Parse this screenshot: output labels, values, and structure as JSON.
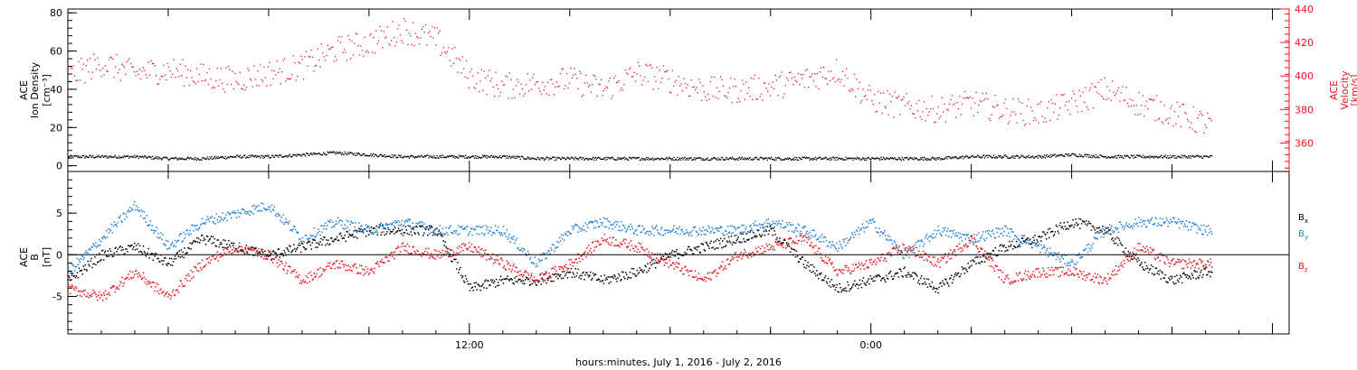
{
  "chart_data": [
    {
      "type": "scatter",
      "panel": "density-velocity",
      "ylabel_left": [
        "ACE",
        "Ion Density",
        "[cm⁻³]"
      ],
      "ylabel_right": [
        "ACE",
        "Velocity",
        "[km/s]"
      ],
      "y_left_ticks": [
        "0",
        "20",
        "40",
        "60",
        "80"
      ],
      "y_left_range": [
        -3,
        82
      ],
      "y_right_ticks": [
        "360",
        "380",
        "400",
        "420",
        "440"
      ],
      "y_right_range": [
        343,
        440
      ],
      "series": [
        {
          "name": "density",
          "color": "#000000",
          "axis": "left",
          "x_hours": [
            0,
            1,
            2,
            3,
            4,
            5,
            6,
            7,
            8,
            9,
            10,
            11,
            12,
            13,
            14,
            15,
            16,
            17,
            18,
            19,
            20,
            21,
            22,
            23,
            24,
            25,
            26,
            27,
            28,
            29,
            30,
            31,
            32,
            33,
            34
          ],
          "values": [
            5,
            5,
            5,
            4,
            4,
            5,
            5,
            6,
            7,
            6,
            5,
            5,
            5,
            5,
            4,
            4,
            4,
            4,
            4,
            4,
            4,
            4,
            4,
            4,
            4,
            4,
            4,
            5,
            5,
            5,
            6,
            5,
            5,
            5,
            5
          ]
        },
        {
          "name": "velocity",
          "color": "#e8141e",
          "axis": "right",
          "x_hours": [
            0,
            1,
            2,
            3,
            4,
            5,
            6,
            7,
            8,
            9,
            10,
            11,
            12,
            13,
            14,
            15,
            16,
            17,
            18,
            19,
            20,
            21,
            22,
            23,
            24,
            25,
            26,
            27,
            28,
            29,
            30,
            31,
            32,
            33,
            34
          ],
          "values": [
            400,
            408,
            402,
            404,
            400,
            398,
            402,
            406,
            416,
            420,
            428,
            422,
            400,
            394,
            396,
            398,
            392,
            402,
            398,
            392,
            392,
            394,
            398,
            404,
            386,
            382,
            380,
            384,
            380,
            378,
            384,
            392,
            384,
            378,
            372
          ]
        }
      ]
    },
    {
      "type": "scatter",
      "panel": "imf",
      "ylabel": [
        "ACE",
        "B",
        "[nT]"
      ],
      "y_ticks": [
        "-5",
        "0",
        "5"
      ],
      "y_range": [
        -9.5,
        10
      ],
      "series": [
        {
          "name": "Bx",
          "label": "B",
          "sub": "x",
          "color": "#000000",
          "x_hours": [
            0,
            1,
            2,
            3,
            4,
            5,
            6,
            7,
            8,
            9,
            10,
            11,
            12,
            13,
            14,
            15,
            16,
            17,
            18,
            19,
            20,
            21,
            22,
            23,
            24,
            25,
            26,
            27,
            28,
            29,
            30,
            31,
            32,
            33,
            34
          ],
          "values": [
            -3,
            0,
            1,
            -1,
            2,
            1,
            0,
            1,
            2,
            3,
            3,
            3,
            -4,
            -3,
            -3,
            -2,
            -3,
            -2,
            0,
            1,
            2,
            3,
            -1,
            -4,
            -3,
            -2,
            -4,
            -1,
            1,
            2,
            4,
            3,
            -1,
            -3,
            -2
          ]
        },
        {
          "name": "By",
          "label": "B",
          "sub": "y",
          "color": "#1f7fd6",
          "x_hours": [
            0,
            1,
            2,
            3,
            4,
            5,
            6,
            7,
            8,
            9,
            10,
            11,
            12,
            13,
            14,
            15,
            16,
            17,
            18,
            19,
            20,
            21,
            22,
            23,
            24,
            25,
            26,
            27,
            28,
            29,
            30,
            31,
            32,
            33,
            34
          ],
          "values": [
            -2,
            2,
            6,
            1,
            4,
            5,
            6,
            2,
            4,
            3,
            4,
            3,
            3,
            3,
            -1,
            3,
            4,
            3,
            3,
            3,
            3,
            4,
            3,
            1,
            4,
            0,
            3,
            2,
            3,
            1,
            -1,
            3,
            4,
            4,
            3
          ]
        },
        {
          "name": "Bz",
          "label": "B",
          "sub": "z",
          "color": "#e8141e",
          "x_hours": [
            0,
            1,
            2,
            3,
            4,
            5,
            6,
            7,
            8,
            9,
            10,
            11,
            12,
            13,
            14,
            15,
            16,
            17,
            18,
            19,
            20,
            21,
            22,
            23,
            24,
            25,
            26,
            27,
            28,
            29,
            30,
            31,
            32,
            33,
            34
          ],
          "values": [
            -4,
            -5,
            -2,
            -5,
            -1,
            1,
            0,
            -3,
            -1,
            -2,
            1,
            0,
            1,
            -1,
            -3,
            -1,
            2,
            1,
            -1,
            -3,
            0,
            1,
            2,
            -2,
            -1,
            1,
            -1,
            2,
            -3,
            -2,
            -2,
            -3,
            1,
            -1,
            -1
          ]
        }
      ]
    }
  ],
  "x_axis": {
    "start_hour": 0,
    "end_hour": 36.5,
    "tick_labels": [
      {
        "hour": 12,
        "label": "12:00"
      },
      {
        "hour": 24,
        "label": "0:00"
      }
    ],
    "xlabel": "hours:minutes, July  1, 2016 - July  2, 2016"
  },
  "colors": {
    "black": "#000000",
    "red": "#e8141e",
    "blue": "#1f7fd6"
  }
}
